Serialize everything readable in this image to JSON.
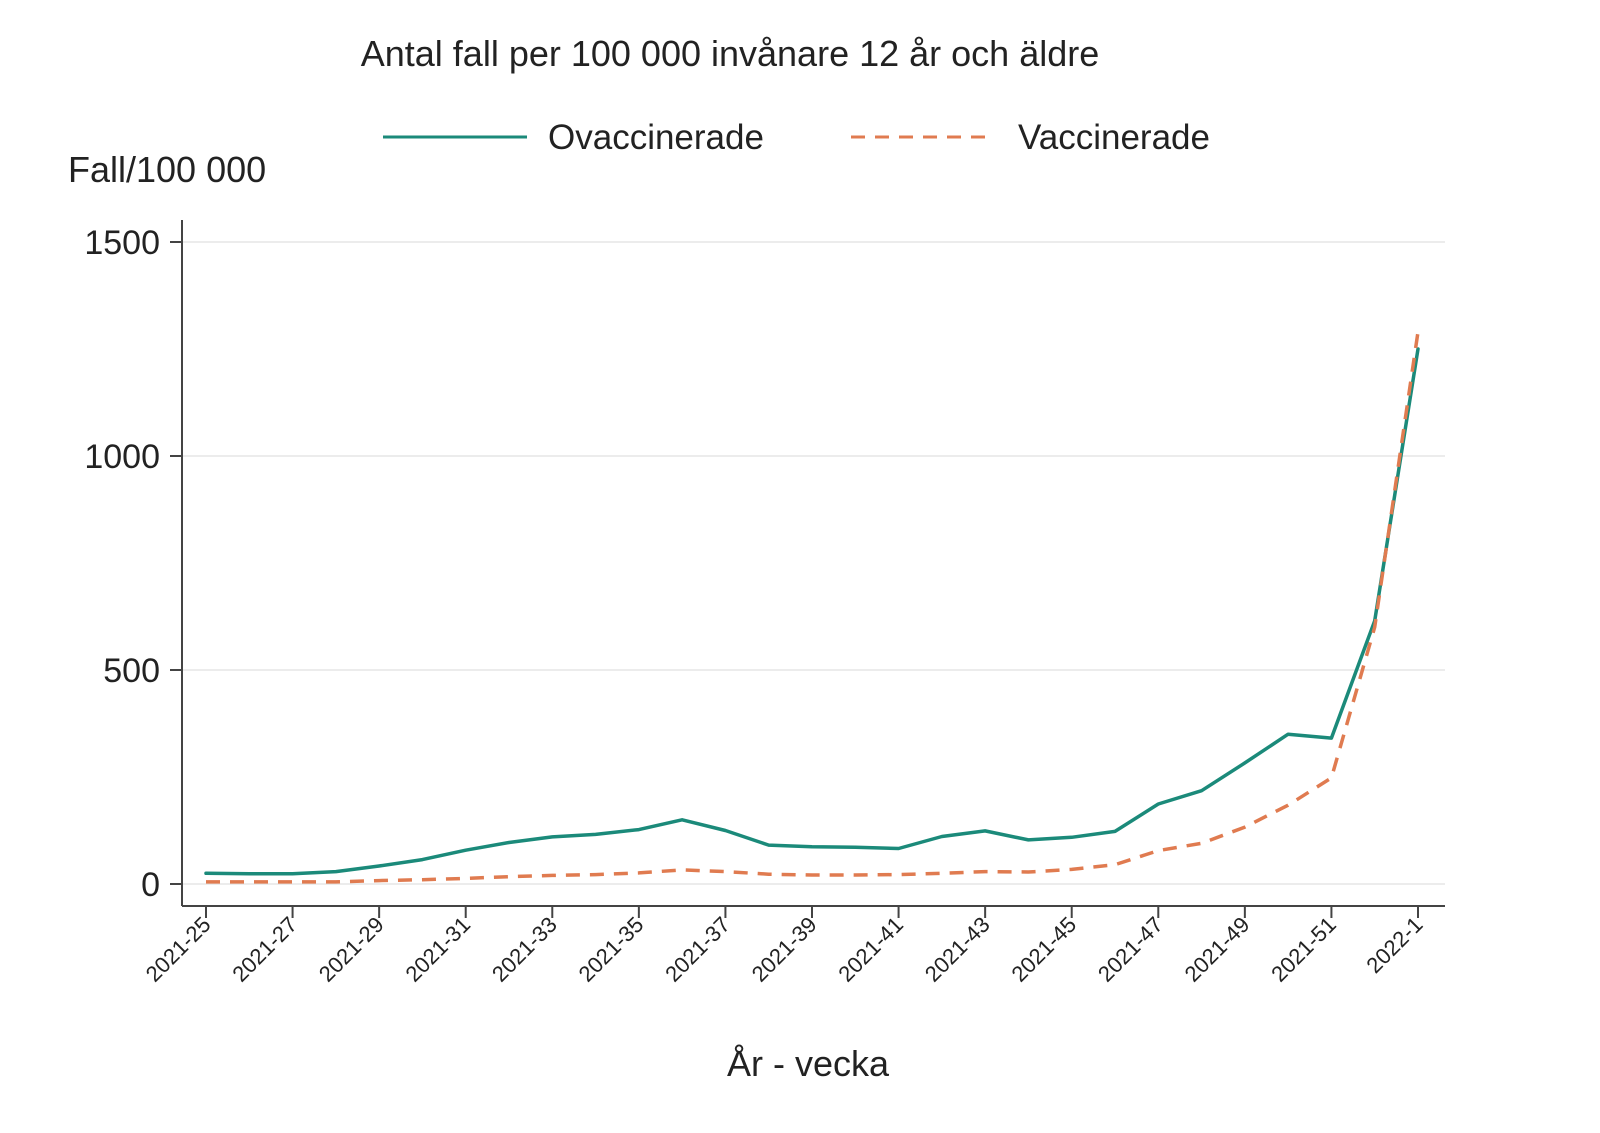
{
  "chart_data": {
    "type": "line",
    "title": "Antal fall per 100 000 invånare 12 år och äldre",
    "ylabel": "Fall/100 000",
    "xlabel": "År - vecka",
    "ylim": [
      0,
      1500
    ],
    "yticks": [
      0,
      500,
      1000,
      1500
    ],
    "grid": true,
    "legend_position": "top",
    "x": [
      "2021-25",
      "2021-26",
      "2021-27",
      "2021-28",
      "2021-29",
      "2021-30",
      "2021-31",
      "2021-32",
      "2021-33",
      "2021-34",
      "2021-35",
      "2021-36",
      "2021-37",
      "2021-38",
      "2021-39",
      "2021-40",
      "2021-41",
      "2021-42",
      "2021-43",
      "2021-44",
      "2021-45",
      "2021-46",
      "2021-47",
      "2021-48",
      "2021-49",
      "2021-50",
      "2021-51",
      "2021-52",
      "2022-1"
    ],
    "xtick_labels": [
      "2021-25",
      "2021-27",
      "2021-29",
      "2021-31",
      "2021-33",
      "2021-35",
      "2021-37",
      "2021-39",
      "2021-41",
      "2021-43",
      "2021-45",
      "2021-47",
      "2021-49",
      "2021-51",
      "2022-1"
    ],
    "series": [
      {
        "name": "Ovaccinerade",
        "color": "#1b8a7a",
        "style": "solid",
        "values": [
          25,
          24,
          24,
          29,
          42,
          57,
          79,
          97,
          110,
          116,
          127,
          150,
          125,
          91,
          87,
          86,
          83,
          111,
          124,
          103,
          109,
          123,
          187,
          218,
          283,
          350,
          341,
          615,
          1250
        ]
      },
      {
        "name": "Vaccinerade",
        "color": "#e07b50",
        "style": "dashed",
        "values": [
          5,
          5,
          5,
          5,
          8,
          10,
          13,
          17,
          20,
          22,
          26,
          33,
          29,
          23,
          21,
          21,
          22,
          25,
          29,
          28,
          34,
          45,
          78,
          95,
          133,
          184,
          248,
          600,
          1290
        ]
      }
    ]
  }
}
